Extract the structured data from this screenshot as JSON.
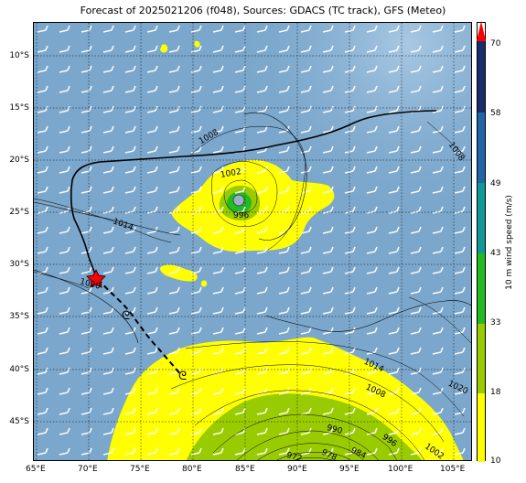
{
  "title": "Forecast of 2025021206 (f048), Sources: GDACS (TC track), GFS (Meteo)",
  "lat_labels": [
    "10°S",
    "15°S",
    "20°S",
    "25°S",
    "30°S",
    "35°S",
    "40°S",
    "45°S"
  ],
  "lon_labels": [
    "65°E",
    "70°E",
    "75°E",
    "80°E",
    "85°E",
    "90°E",
    "95°E",
    "100°E",
    "105°E"
  ],
  "isobars": [
    "1008",
    "1002",
    "996",
    "1014",
    "1020",
    "1008",
    "1014",
    "1008",
    "1020",
    "990",
    "984",
    "978",
    "972",
    "996",
    "1002"
  ],
  "colorbar": {
    "label": "10 m wind speed (m/s)",
    "ticks": [
      "10",
      "18",
      "33",
      "43",
      "49",
      "58",
      "70"
    ],
    "colors": [
      "#ffff00",
      "#99cc00",
      "#22bb22",
      "#119999",
      "#2266aa",
      "#1a2e6e",
      "#ff0000"
    ]
  },
  "colors": {
    "ocean": "#7ba7cc",
    "track": "#000000",
    "storm_marker": "#ff0000"
  }
}
